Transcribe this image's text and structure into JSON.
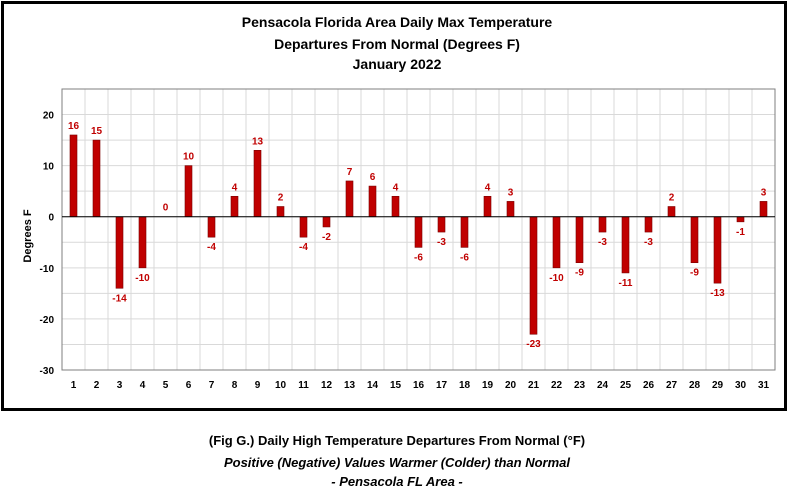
{
  "chart_data": {
    "type": "bar",
    "title_lines": [
      "Pensacola Florida Area Daily Max Temperature",
      "Departures From Normal (Degrees F)",
      "January 2022"
    ],
    "xlabel": "",
    "ylabel": "Degrees F",
    "ylim": [
      -30,
      25
    ],
    "yticks": [
      20,
      10,
      0,
      -10,
      -20,
      -30
    ],
    "grid": true,
    "legend": "none",
    "bar_color": "#c00000",
    "label_color": "#c00000",
    "categories": [
      "1",
      "2",
      "3",
      "4",
      "5",
      "6",
      "7",
      "8",
      "9",
      "10",
      "11",
      "12",
      "13",
      "14",
      "15",
      "16",
      "17",
      "18",
      "19",
      "20",
      "21",
      "22",
      "23",
      "24",
      "25",
      "26",
      "27",
      "28",
      "29",
      "30",
      "31"
    ],
    "values": [
      16,
      15,
      -14,
      -10,
      0,
      10,
      -4,
      4,
      13,
      2,
      -4,
      -2,
      7,
      6,
      4,
      -6,
      -3,
      -6,
      4,
      3,
      -23,
      -10,
      -9,
      -3,
      -11,
      -3,
      2,
      -9,
      -13,
      -1,
      3
    ]
  },
  "caption": {
    "line1": "(Fig G.) Daily High Temperature Departures From Normal (°F)",
    "line2": "Positive (Negative) Values Warmer (Colder) than Normal",
    "line3": "- Pensacola FL Area -"
  }
}
